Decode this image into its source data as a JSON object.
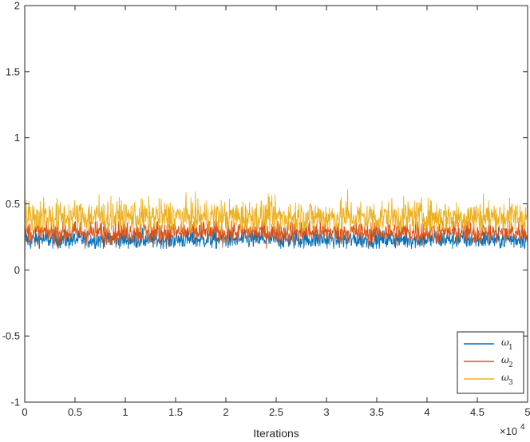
{
  "chart_data": {
    "type": "line",
    "title": "",
    "xlabel": "Iterations",
    "ylabel": "",
    "x_exponent_label": "×10",
    "x_exponent": "4",
    "xlim": [
      0,
      5
    ],
    "ylim": [
      -1,
      2
    ],
    "x_scale_factor": 10000,
    "x_ticks": [
      "0",
      "0.5",
      "1",
      "1.5",
      "2",
      "2.5",
      "3",
      "3.5",
      "4",
      "4.5",
      "5"
    ],
    "y_ticks": [
      "-1",
      "-0.5",
      "0",
      "0.5",
      "1",
      "1.5",
      "2"
    ],
    "grid": false,
    "legend_position": "bottom-right",
    "series": [
      {
        "name": "ω",
        "subscript": "1",
        "color": "#0072BD",
        "mean": 0.23,
        "min": 0.16,
        "max": 0.33,
        "start": 0.0
      },
      {
        "name": "ω",
        "subscript": "2",
        "color": "#D95319",
        "mean": 0.285,
        "min": 0.15,
        "max": 0.37,
        "start": 0.0
      },
      {
        "name": "ω",
        "subscript": "3",
        "color": "#EDB120",
        "mean": 0.4,
        "min": 0.3,
        "max": 0.61,
        "start": 1.0
      }
    ],
    "spikes": [
      {
        "series": 2,
        "x": 3.21,
        "y": 0.61
      },
      {
        "series": 2,
        "x": 0.74,
        "y": 0.57
      },
      {
        "series": 2,
        "x": 4.56,
        "y": 0.58
      },
      {
        "series": 2,
        "x": 2.43,
        "y": 0.55
      },
      {
        "series": 2,
        "x": 0.19,
        "y": 0.55
      },
      {
        "series": 0,
        "x": 3.2,
        "y": 0.16
      },
      {
        "series": 0,
        "x": 0.06,
        "y": 0.16
      }
    ]
  }
}
